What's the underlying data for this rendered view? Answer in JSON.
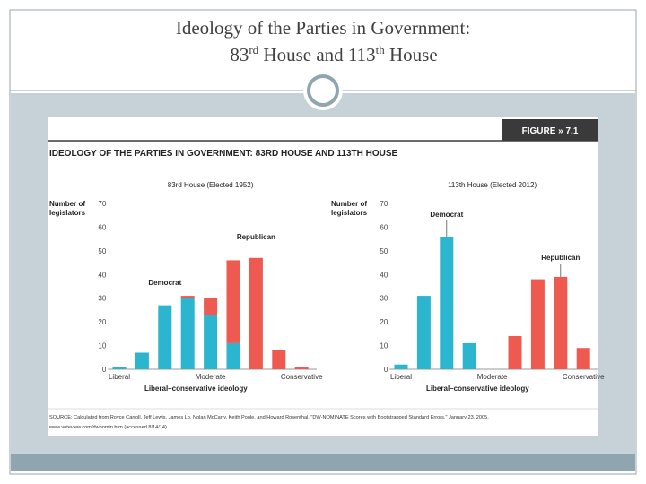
{
  "slide": {
    "title_parts": [
      "Ideology of the Parties in Government:",
      "83",
      "rd",
      " House and 113",
      "th",
      " House"
    ]
  },
  "figure": {
    "label": "FIGURE » 7.1",
    "title": "IDEOLOGY OF THE PARTIES IN GOVERNMENT: 83RD HOUSE AND 113TH HOUSE",
    "source_lines": [
      "SOURCE: Calculated from Royce Carroll, Jeff Lewis, James Lo, Nolan McCarty, Keith Poole, and Howard Rosenthal, \"DW-NOMINATE Scores with Bootstrapped Standard Errors,\" January 23, 2005,",
      "www.voteview.com/dwnomin.htm (accessed 8/14/14)."
    ]
  },
  "chart_data": [
    {
      "type": "bar",
      "stacked": true,
      "title": "83rd House (Elected 1952)",
      "y_label_lines": [
        "Number of",
        "legislators"
      ],
      "x_label": "Liberal–conservative ideology",
      "categories": [
        "Liberal",
        null,
        null,
        null,
        "Moderate",
        null,
        null,
        null,
        "Conservative"
      ],
      "series": [
        {
          "name": "Democrat",
          "color": "#2bb5cf",
          "values": [
            1,
            7,
            27,
            30,
            23,
            11,
            0,
            0,
            0
          ]
        },
        {
          "name": "Republican",
          "color": "#ef5a50",
          "values": [
            0,
            0,
            0,
            1,
            7,
            35,
            47,
            8,
            1
          ]
        }
      ],
      "ylim": [
        0,
        70
      ],
      "yticks": [
        0,
        10,
        20,
        30,
        40,
        50,
        60,
        70
      ]
    },
    {
      "type": "bar",
      "stacked": true,
      "title": "113th House (Elected 2012)",
      "y_label_lines": [
        "Number of",
        "legislators"
      ],
      "x_label": "Liberal–conservative ideology",
      "categories": [
        "Liberal",
        null,
        null,
        null,
        "Moderate",
        null,
        null,
        null,
        "Conservative"
      ],
      "series": [
        {
          "name": "Democrat",
          "color": "#2bb5cf",
          "values": [
            2,
            31,
            56,
            11,
            0,
            0,
            0,
            0,
            0
          ]
        },
        {
          "name": "Republican",
          "color": "#ef5a50",
          "values": [
            0,
            0,
            0,
            0,
            0,
            14,
            38,
            39,
            9
          ]
        }
      ],
      "ylim": [
        0,
        70
      ],
      "yticks": [
        0,
        10,
        20,
        30,
        40,
        50,
        60,
        70
      ]
    }
  ]
}
